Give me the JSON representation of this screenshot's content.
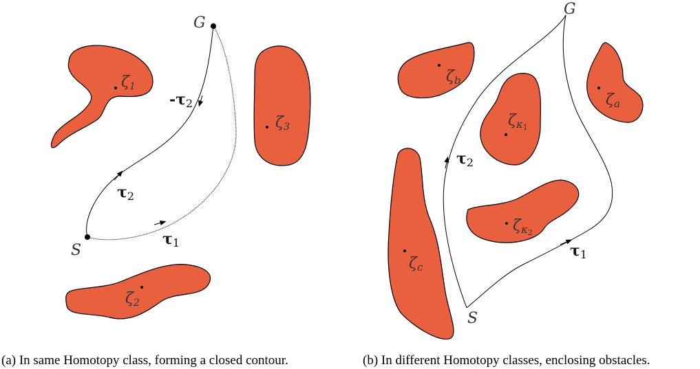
{
  "panel_a": {
    "labels": {
      "start": "S",
      "goal": "G",
      "tau1": "τ",
      "tau1_sub": "1",
      "tau2": "τ",
      "tau2_sub": "2",
      "neg_tau2_prefix": "-",
      "neg_tau2": "τ",
      "neg_tau2_sub": "2",
      "zeta1": "ζ",
      "zeta1_sub": "1",
      "zeta2": "ζ",
      "zeta2_sub": "2",
      "zeta3": "ζ",
      "zeta3_sub": "3"
    },
    "caption": "(a)  In same Homotopy class, forming a closed contour."
  },
  "panel_b": {
    "labels": {
      "start": "S",
      "goal": "G",
      "tau1": "τ",
      "tau1_sub": "1",
      "tau2": "τ",
      "tau2_sub": "2",
      "zeta_a": "ζ",
      "zeta_a_sub": "a",
      "zeta_b": "ζ",
      "zeta_b_sub": "b",
      "zeta_c": "ζ",
      "zeta_c_sub": "c",
      "zeta_k1": "ζ",
      "zeta_k1_sub": "κ",
      "zeta_k1_subsub": "1",
      "zeta_k2": "ζ",
      "zeta_k2_sub": "κ",
      "zeta_k2_subsub": "2"
    },
    "caption": "(b)  In different Homotopy classes, enclosing obstacles."
  },
  "colors": {
    "obstacle_fill": "#e9603f",
    "outline": "#000000"
  }
}
